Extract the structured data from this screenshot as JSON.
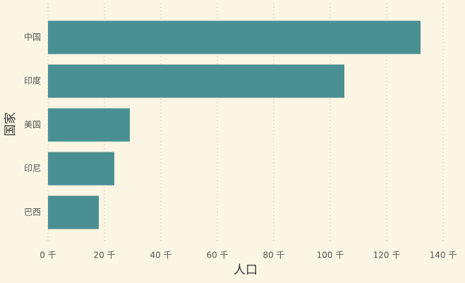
{
  "chart_data": {
    "type": "bar",
    "orientation": "horizontal",
    "x_label": "人口",
    "y_label": "国家",
    "categories": [
      "中国",
      "印度",
      "美国",
      "印尼",
      "巴西"
    ],
    "values": [
      132,
      105,
      29,
      23.5,
      18
    ],
    "color": "#4a9093",
    "xlim": [
      0,
      140
    ],
    "xticks": [
      {
        "value": 0,
        "label": "0 千"
      },
      {
        "value": 20,
        "label": "20 千"
      },
      {
        "value": 40,
        "label": "40 千"
      },
      {
        "value": 60,
        "label": "60 千"
      },
      {
        "value": 80,
        "label": "80 千"
      },
      {
        "value": 100,
        "label": "100 千"
      },
      {
        "value": 120,
        "label": "120 千"
      },
      {
        "value": 140,
        "label": "140 千"
      }
    ],
    "grid": true
  }
}
